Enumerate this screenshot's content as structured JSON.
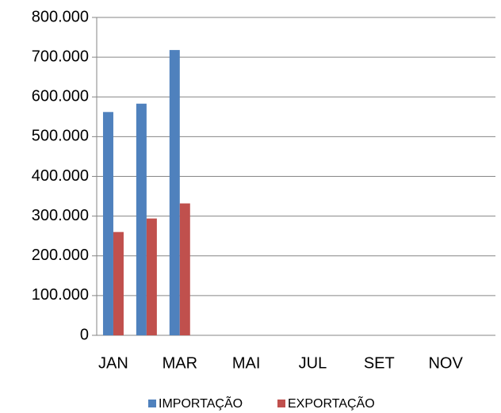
{
  "chart_data": {
    "type": "bar",
    "categories": [
      "JAN",
      null,
      "MAR",
      null,
      "MAI",
      null,
      "JUL",
      null,
      "SET",
      null,
      "NOV",
      null
    ],
    "series": [
      {
        "name": "IMPORTAÇÃO",
        "color": "#4f81bd",
        "values": [
          562000,
          583000,
          718000,
          null,
          null,
          null,
          null,
          null,
          null,
          null,
          null,
          null
        ]
      },
      {
        "name": "EXPORTAÇÃO",
        "color": "#c0504d",
        "values": [
          260000,
          294000,
          332000,
          null,
          null,
          null,
          null,
          null,
          null,
          null,
          null,
          null
        ]
      }
    ],
    "ylim": [
      0,
      800000
    ],
    "yticks": [
      0,
      {
        "value": 100000,
        "label": "100.000"
      },
      {
        "value": 200000,
        "label": "200.000"
      },
      {
        "value": 300000,
        "label": "300.000"
      },
      {
        "value": 400000,
        "label": "400.000"
      },
      {
        "value": 500000,
        "label": "500.000"
      },
      {
        "value": 600000,
        "label": "600.000"
      },
      {
        "value": 700000,
        "label": "700.000"
      },
      {
        "value": 800000,
        "label": "800.000"
      }
    ],
    "grid": true,
    "legend": "bottom"
  }
}
